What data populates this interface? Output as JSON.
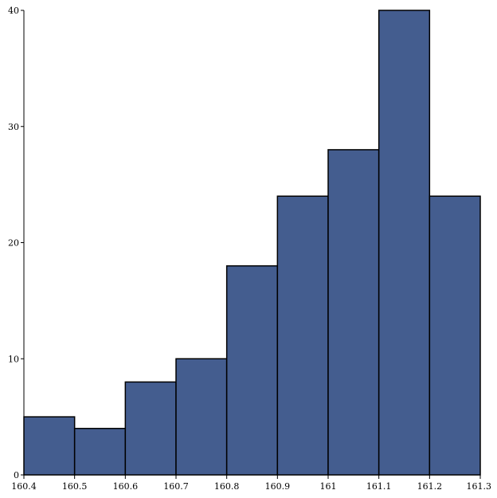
{
  "chart_data": {
    "type": "bar",
    "title": "",
    "xlabel": "",
    "ylabel": "",
    "bin_edges": [
      160.4,
      160.5,
      160.6,
      160.7,
      160.8,
      160.9,
      161.0,
      161.1,
      161.2,
      161.3
    ],
    "values": [
      5,
      4,
      8,
      10,
      18,
      24,
      28,
      40,
      24
    ],
    "xlim": [
      160.4,
      161.3
    ],
    "ylim": [
      0,
      40
    ],
    "x_ticks": [
      {
        "value": 160.4,
        "label": "160.4"
      },
      {
        "value": 160.5,
        "label": "160.5"
      },
      {
        "value": 160.6,
        "label": "160.6"
      },
      {
        "value": 160.7,
        "label": "160.7"
      },
      {
        "value": 160.8,
        "label": "160.8"
      },
      {
        "value": 160.9,
        "label": "160.9"
      },
      {
        "value": 161.0,
        "label": "161"
      },
      {
        "value": 161.1,
        "label": "161.1"
      },
      {
        "value": 161.2,
        "label": "161.2"
      },
      {
        "value": 161.3,
        "label": "161.3"
      }
    ],
    "y_ticks": [
      {
        "value": 0,
        "label": "0"
      },
      {
        "value": 10,
        "label": "10"
      },
      {
        "value": 20,
        "label": "20"
      },
      {
        "value": 30,
        "label": "30"
      },
      {
        "value": 40,
        "label": "40"
      }
    ],
    "bar_color": "#445d8f",
    "edge_color": "#000000",
    "grid": false,
    "legend": "none"
  }
}
